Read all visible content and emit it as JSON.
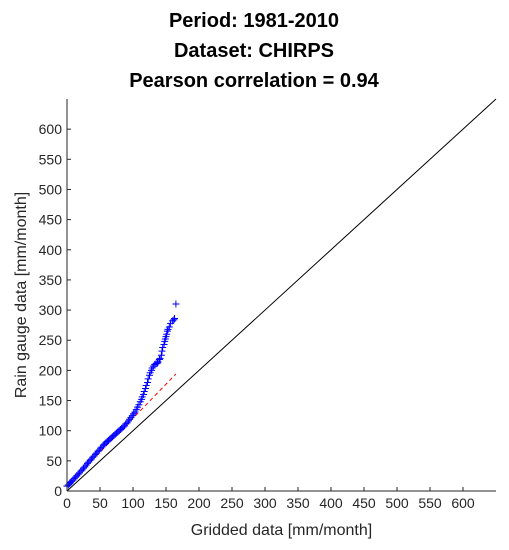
{
  "chart_data": {
    "type": "scatter",
    "title_lines": [
      "Period: 1981-2010",
      "Dataset: CHIRPS",
      "Pearson correlation = 0.94"
    ],
    "xlabel": "Gridded data [mm/month]",
    "ylabel": "Rain gauge data [mm/month]",
    "xlim": [
      0,
      650
    ],
    "ylim": [
      0,
      650
    ],
    "xticks": [
      0,
      50,
      100,
      150,
      200,
      250,
      300,
      350,
      400,
      450,
      500,
      550,
      600
    ],
    "yticks": [
      0,
      50,
      100,
      150,
      200,
      250,
      300,
      350,
      400,
      450,
      500,
      550,
      600
    ],
    "grid": false,
    "marker": "+",
    "colors": {
      "points": "#0000ff",
      "fit_line": "#ff0000",
      "identity_line": "#000000",
      "axes": "#262626"
    },
    "identity_line": {
      "x": [
        0,
        650
      ],
      "y": [
        0,
        650
      ]
    },
    "fit_line": {
      "x": [
        0,
        165
      ],
      "y": [
        8,
        194
      ]
    },
    "points": {
      "x": [
        0,
        2,
        4,
        5,
        7,
        9,
        11,
        13,
        15,
        17,
        19,
        21,
        23,
        25,
        27,
        29,
        31,
        33,
        35,
        37,
        39,
        41,
        43,
        45,
        47,
        49,
        51,
        53,
        55,
        57,
        59,
        61,
        63,
        65,
        67,
        69,
        71,
        73,
        75,
        77,
        79,
        81,
        83,
        85,
        87,
        89,
        91,
        93,
        95,
        97,
        99,
        101,
        103,
        105,
        107,
        109,
        111,
        113,
        114,
        116,
        117,
        119,
        120,
        122,
        123,
        125,
        126,
        128,
        129,
        131,
        133,
        135,
        137,
        138,
        140,
        141,
        143,
        144,
        145,
        147,
        148,
        149,
        150,
        151,
        152,
        153,
        155,
        157,
        160,
        162,
        163,
        165
      ],
      "y": [
        8,
        10,
        12,
        14,
        16,
        18,
        21,
        23,
        25,
        28,
        30,
        33,
        35,
        38,
        40,
        43,
        46,
        48,
        51,
        53,
        56,
        58,
        61,
        63,
        66,
        68,
        71,
        73,
        76,
        78,
        80,
        82,
        84,
        86,
        88,
        90,
        92,
        94,
        96,
        98,
        100,
        102,
        104,
        106,
        108,
        111,
        113,
        116,
        119,
        122,
        125,
        128,
        131,
        135,
        139,
        143,
        148,
        152,
        156,
        160,
        165,
        170,
        175,
        180,
        186,
        192,
        196,
        200,
        204,
        207,
        210,
        211,
        212,
        214,
        218,
        220,
        225,
        232,
        238,
        243,
        248,
        252,
        256,
        260,
        265,
        268,
        272,
        278,
        282,
        284,
        286,
        310
      ]
    }
  }
}
